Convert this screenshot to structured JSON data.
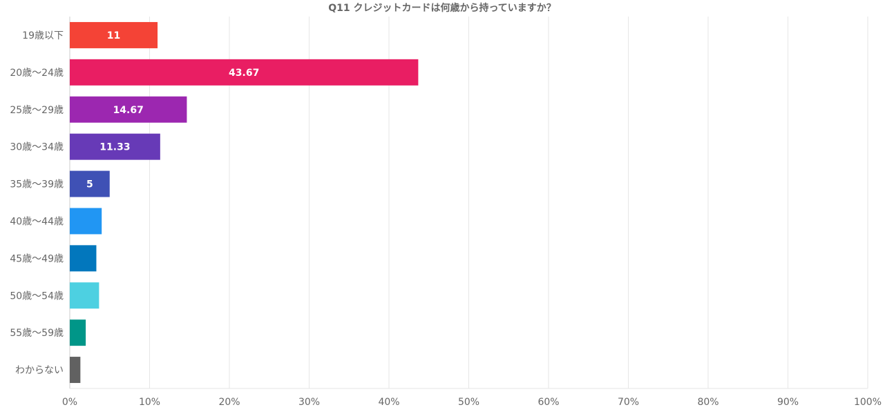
{
  "chart_data": {
    "type": "bar",
    "orientation": "horizontal",
    "title": "Q11 クレジットカードは何歳から持っていますか？",
    "categories": [
      "19歳以下",
      "20歳～24歳",
      "25歳～29歳",
      "30歳～34歳",
      "35歳～39歳",
      "40歳～44歳",
      "45歳～49歳",
      "50歳～54歳",
      "55歳～59歳",
      "わからない"
    ],
    "values": [
      11,
      43.67,
      14.67,
      11.33,
      5,
      4,
      3.33,
      3.67,
      2,
      1.33
    ],
    "data_labels": [
      "11",
      "43.67",
      "14.67",
      "11.33",
      "5",
      "",
      "",
      "",
      "",
      ""
    ],
    "colors": [
      "#f44336",
      "#e91e63",
      "#9c27b0",
      "#673ab7",
      "#3f51b5",
      "#2196f3",
      "#0277bd",
      "#4dd0e1",
      "#009688",
      "#616161"
    ],
    "xlim": [
      0,
      100
    ],
    "x_ticks": [
      "0%",
      "10%",
      "20%",
      "30%",
      "40%",
      "50%",
      "60%",
      "70%",
      "80%",
      "90%",
      "100%"
    ],
    "grid": true,
    "legend": "none"
  }
}
